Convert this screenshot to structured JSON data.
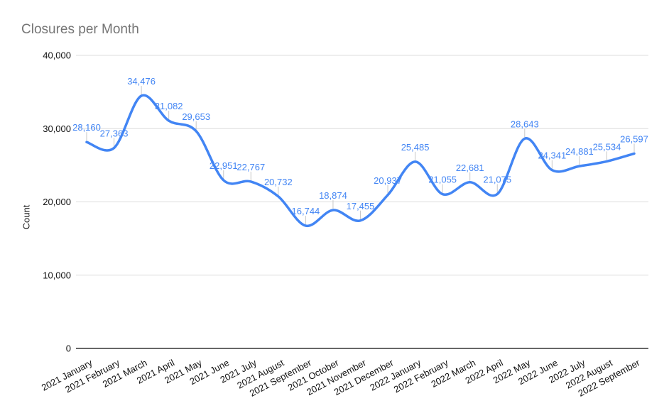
{
  "chart_data": {
    "type": "line",
    "title": "Closures per Month",
    "ylabel": "Count",
    "smooth": true,
    "grid": true,
    "legend": "none",
    "ylim": [
      0,
      40000
    ],
    "yticks": [
      {
        "value": 0,
        "label": "0"
      },
      {
        "value": 10000,
        "label": "10,000"
      },
      {
        "value": 20000,
        "label": "20,000"
      },
      {
        "value": 30000,
        "label": "30,000"
      },
      {
        "value": 40000,
        "label": "40,000"
      }
    ],
    "categories": [
      "2021 January",
      "2021 February",
      "2021 March",
      "2021 April",
      "2021 May",
      "2021 June",
      "2021 July",
      "2021 August",
      "2021 September",
      "2021 October",
      "2021 November",
      "2021 December",
      "2022 January",
      "2022 February",
      "2022 March",
      "2022 April",
      "2022 May",
      "2022 June",
      "2022 July",
      "2022 August",
      "2022 September"
    ],
    "values": [
      28160,
      27363,
      34476,
      31082,
      29653,
      22951,
      22767,
      20732,
      16744,
      18874,
      17455,
      20937,
      25485,
      21055,
      22681,
      21075,
      28643,
      24341,
      24881,
      25534,
      26597
    ],
    "point_labels": [
      "28,160",
      "27,363",
      "34,476",
      "31,082",
      "29,653",
      "22,951",
      "22,767",
      "20,732",
      "16,744",
      "18,874",
      "17,455",
      "20,937",
      "25,485",
      "21,055",
      "22,681",
      "21,075",
      "28,643",
      "24,341",
      "24,881",
      "25,534",
      "26,597"
    ],
    "colors": {
      "line": "#4285f4",
      "data_label": "#4285f4",
      "grid": "#dcdcdc",
      "axis": "#333333",
      "tick_label": "#111111",
      "title": "#757575",
      "leader_tick": "#c7c7c7"
    }
  }
}
